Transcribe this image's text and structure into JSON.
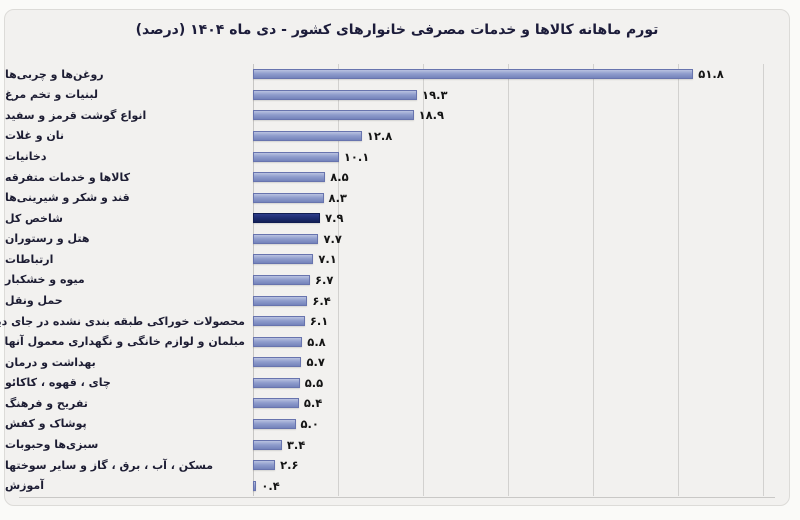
{
  "title": "تورم ماهانه کالاها و خدمات مصرفی خانوارهای کشور - دی ماه ۱۴۰۴ (درصد)",
  "chart_data": {
    "type": "bar",
    "orientation": "horizontal",
    "title": "تورم ماهانه کالاها و خدمات مصرفی خانوارهای کشور - دی ماه ۱۴۰۴ (درصد)",
    "xlabel": "",
    "ylabel": "",
    "xlim": [
      0,
      60
    ],
    "gridline_values": [
      10,
      20,
      30,
      40,
      50,
      60
    ],
    "grid": true,
    "value_digits": "persian",
    "highlight_category": "شاخص کل",
    "colors": {
      "bar": "#8e9ccd",
      "bar_border": "#6874ae",
      "bar_highlight": "#1b2a6e",
      "background": "#f2f1ef",
      "gridline": "#d2d1cf",
      "title_text": "#1c1c3a",
      "label_text": "#1d1d33"
    },
    "bars": [
      {
        "label": "روغن‌ها و چربی‌ها",
        "value": 51.8,
        "display": "۵۱.۸",
        "highlight": false
      },
      {
        "label": "لبنیات و تخم مرغ",
        "value": 19.3,
        "display": "۱۹.۳",
        "highlight": false
      },
      {
        "label": "انواع گوشت قرمز و سفید",
        "value": 18.9,
        "display": "۱۸.۹",
        "highlight": false
      },
      {
        "label": "نان و غلات",
        "value": 12.8,
        "display": "۱۲.۸",
        "highlight": false
      },
      {
        "label": "دخانیات",
        "value": 10.1,
        "display": "۱۰.۱",
        "highlight": false
      },
      {
        "label": "کالاها و خدمات متفرقه",
        "value": 8.5,
        "display": "۸.۵",
        "highlight": false
      },
      {
        "label": "قند و شکر و شیرینی‌ها",
        "value": 8.3,
        "display": "۸.۳",
        "highlight": false
      },
      {
        "label": "شاخص کل",
        "value": 7.9,
        "display": "۷.۹",
        "highlight": true
      },
      {
        "label": "هتل و رستوران",
        "value": 7.7,
        "display": "۷.۷",
        "highlight": false
      },
      {
        "label": "ارتباطات",
        "value": 7.1,
        "display": "۷.۱",
        "highlight": false
      },
      {
        "label": "میوه و خشکبار",
        "value": 6.7,
        "display": "۶.۷",
        "highlight": false
      },
      {
        "label": "حمل ونقل",
        "value": 6.4,
        "display": "۶.۴",
        "highlight": false
      },
      {
        "label": "محصولات خوراکی طبقه بندی نشده در جای دیگر",
        "value": 6.1,
        "display": "۶.۱",
        "highlight": false
      },
      {
        "label": "مبلمان و لوازم خانگی و نگهداری معمول آنها",
        "value": 5.8,
        "display": "۵.۸",
        "highlight": false
      },
      {
        "label": "بهداشت و درمان",
        "value": 5.7,
        "display": "۵.۷",
        "highlight": false
      },
      {
        "label": "چای ، قهوه ، کاکائو",
        "value": 5.5,
        "display": "۵.۵",
        "highlight": false
      },
      {
        "label": "تفریح و فرهنگ",
        "value": 5.4,
        "display": "۵.۴",
        "highlight": false
      },
      {
        "label": "پوشاک و کفش",
        "value": 5.0,
        "display": "۵.۰",
        "highlight": false
      },
      {
        "label": "سبزی‌ها وحبوبات",
        "value": 3.4,
        "display": "۳.۴",
        "highlight": false
      },
      {
        "label": "مسکن ، آب ، برق ، گاز و سایر سوختها",
        "value": 2.6,
        "display": "۲.۶",
        "highlight": false
      },
      {
        "label": "آموزش",
        "value": 0.4,
        "display": "۰.۴",
        "highlight": false
      }
    ]
  }
}
